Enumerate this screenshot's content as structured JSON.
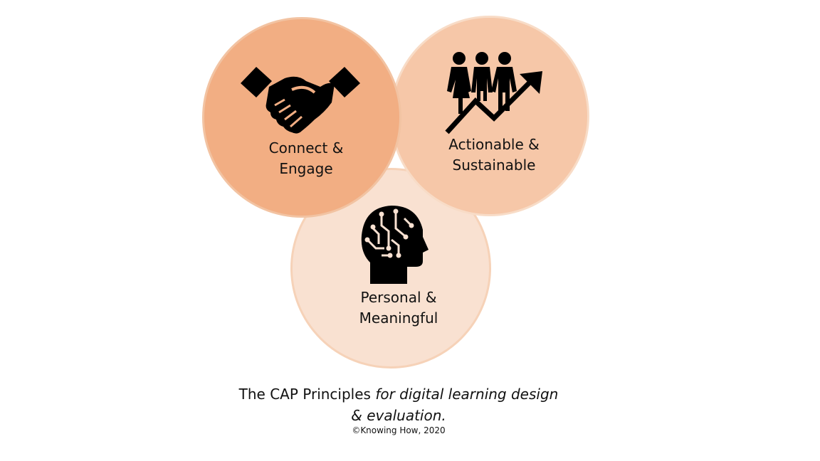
{
  "diagram": {
    "circles": [
      {
        "id": "connect",
        "label_line1": "Connect &",
        "label_line2": "Engage",
        "icon": "handshake-icon",
        "color": "#f2ae83"
      },
      {
        "id": "actionable",
        "label_line1": "Actionable &",
        "label_line2": "Sustainable",
        "icon": "people-growth-arrow-icon",
        "color": "#f6c7a8"
      },
      {
        "id": "personal",
        "label_line1": "Personal &",
        "label_line2": "Meaningful",
        "icon": "circuit-head-icon",
        "color": "#f9e1d1"
      }
    ]
  },
  "caption": {
    "normal": "The CAP Principles ",
    "italic": "for digital learning design & evaluation."
  },
  "copyright": "©Knowing How, 2020"
}
